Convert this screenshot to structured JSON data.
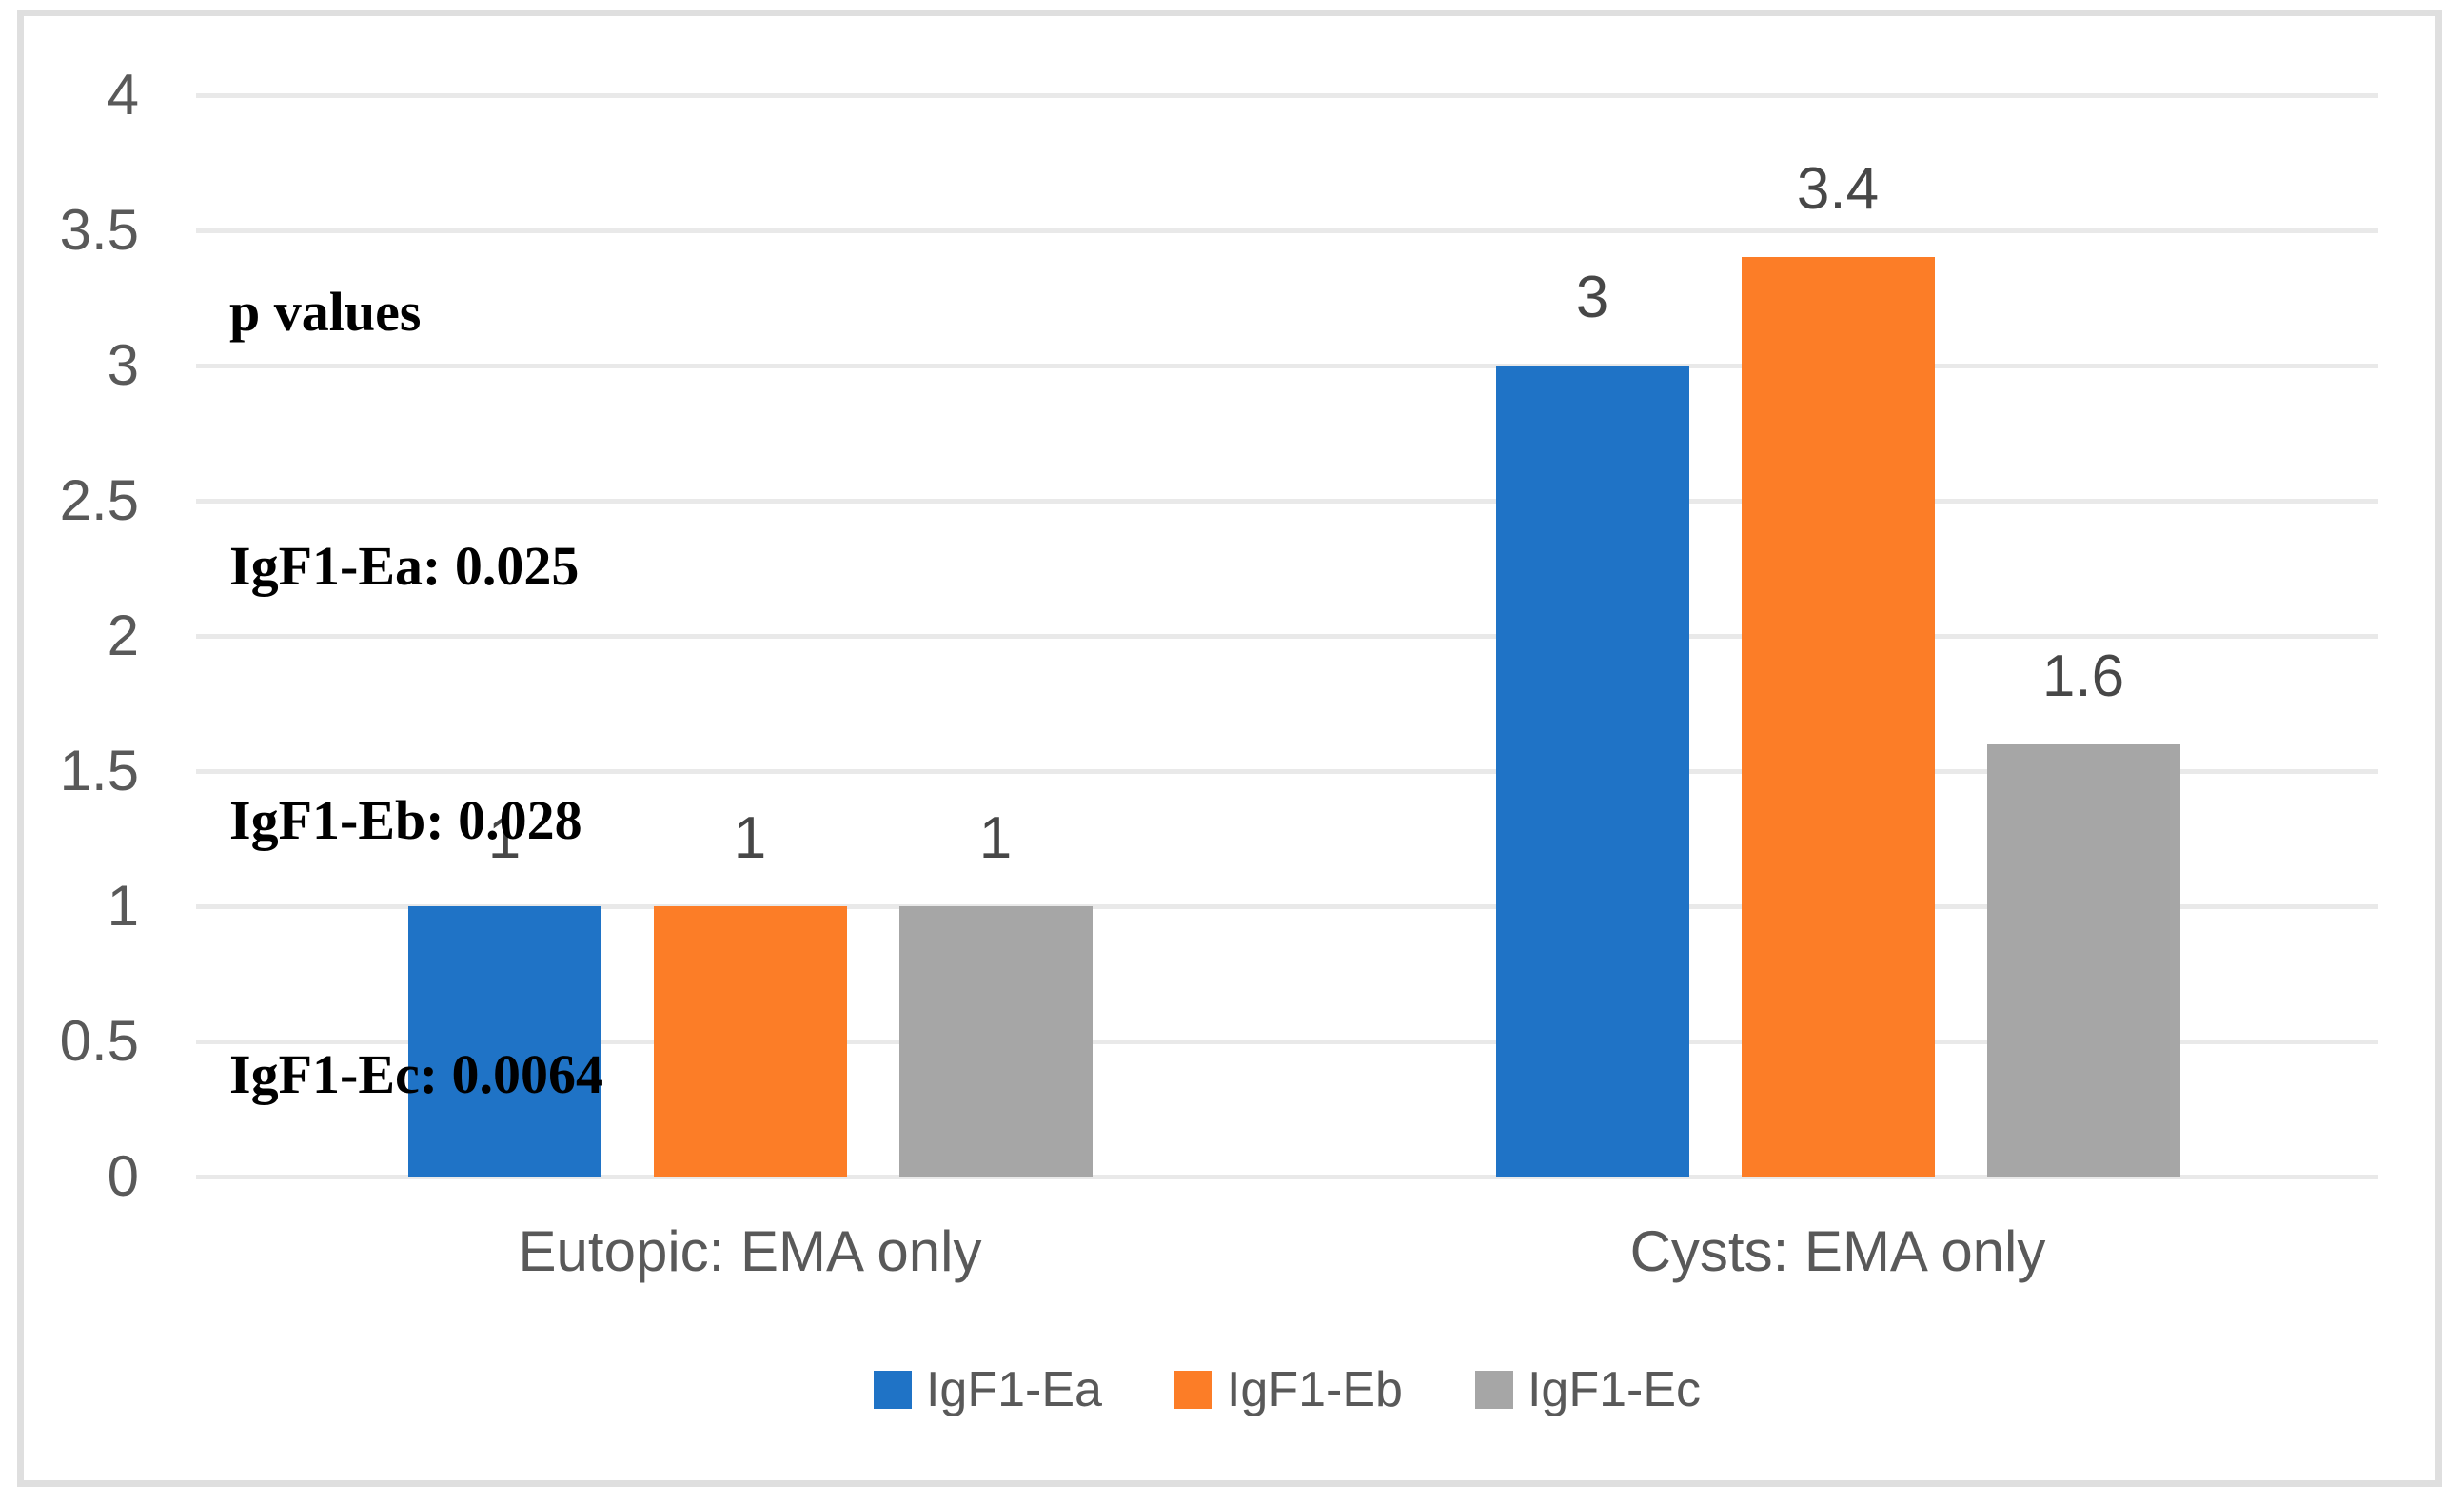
{
  "chart_data": {
    "type": "bar",
    "categories": [
      "Eutopic: EMA only",
      "Cysts: EMA only"
    ],
    "series": [
      {
        "name": "IgF1-Ea",
        "color": "#1f73c6",
        "values": [
          1,
          3
        ]
      },
      {
        "name": "IgF1-Eb",
        "color": "#fc7d27",
        "values": [
          1,
          3.4
        ]
      },
      {
        "name": "IgF1-Ec",
        "color": "#a6a6a6",
        "values": [
          1,
          1.6
        ]
      }
    ],
    "data_labels": {
      "IgF1-Ea": [
        "1",
        "3"
      ],
      "IgF1-Eb": [
        "1",
        "3.4"
      ],
      "IgF1-Ec": [
        "1",
        "1.6"
      ]
    },
    "title": "",
    "xlabel": "",
    "ylabel": "",
    "ylim": [
      0,
      4
    ],
    "ytick_step": 0.5,
    "yticks": [
      "0",
      "0.5",
      "1",
      "1.5",
      "2",
      "2.5",
      "3",
      "3.5",
      "4"
    ],
    "grid": true,
    "legend_position": "bottom",
    "annotation": {
      "lines": [
        "p values",
        "IgF1-Ea: 0.025",
        "IgF1-Eb: 0.028",
        "IgF1-Ec: 0.0064"
      ]
    },
    "colors": {
      "gridline": "#e9e9e9",
      "frame_border": "#dfdfdf",
      "axis_text": "#595959",
      "data_label_text": "#474747",
      "annotation_text": "#000000",
      "background": "#ffffff"
    }
  }
}
